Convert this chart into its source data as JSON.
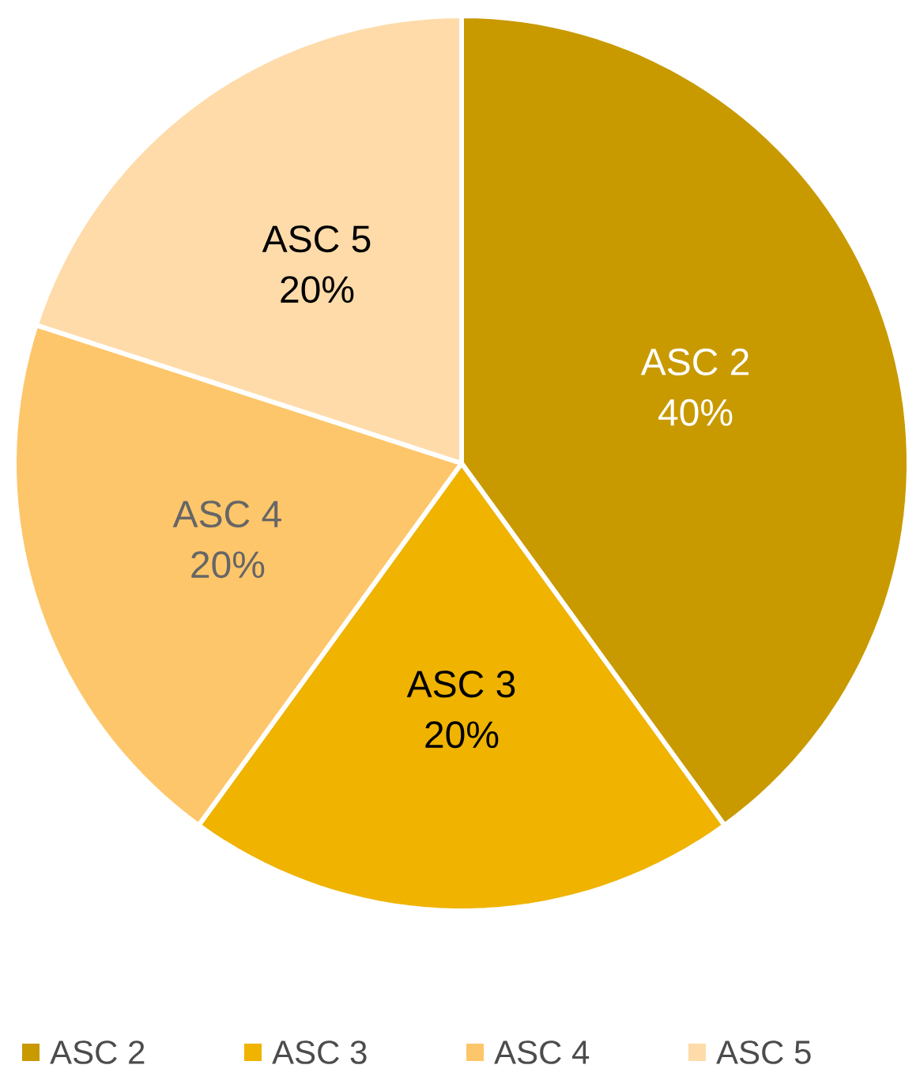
{
  "chart_data": {
    "type": "pie",
    "categories": [
      "ASC 2",
      "ASC 3",
      "ASC 4",
      "ASC 5"
    ],
    "values": [
      40,
      20,
      20,
      20
    ],
    "value_labels": [
      "40%",
      "20%",
      "20%",
      "20%"
    ],
    "colors": [
      "#c89a00",
      "#efb300",
      "#fdc66a",
      "#fedba9"
    ],
    "legend": "bottom"
  }
}
